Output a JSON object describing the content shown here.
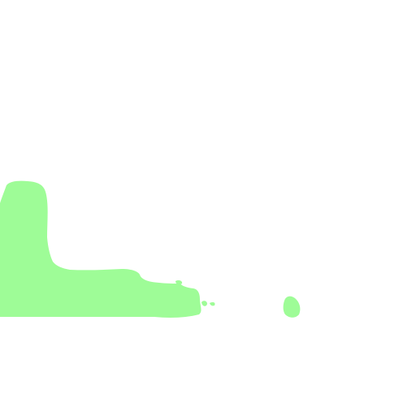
{
  "colors": {
    "background": "#ffffff",
    "shape": "#9efc97"
  },
  "shapes": [
    "green-blob-main",
    "green-blob-fragment-1",
    "green-blob-fragment-2",
    "green-blob-fragment-3",
    "green-blob-dot"
  ]
}
